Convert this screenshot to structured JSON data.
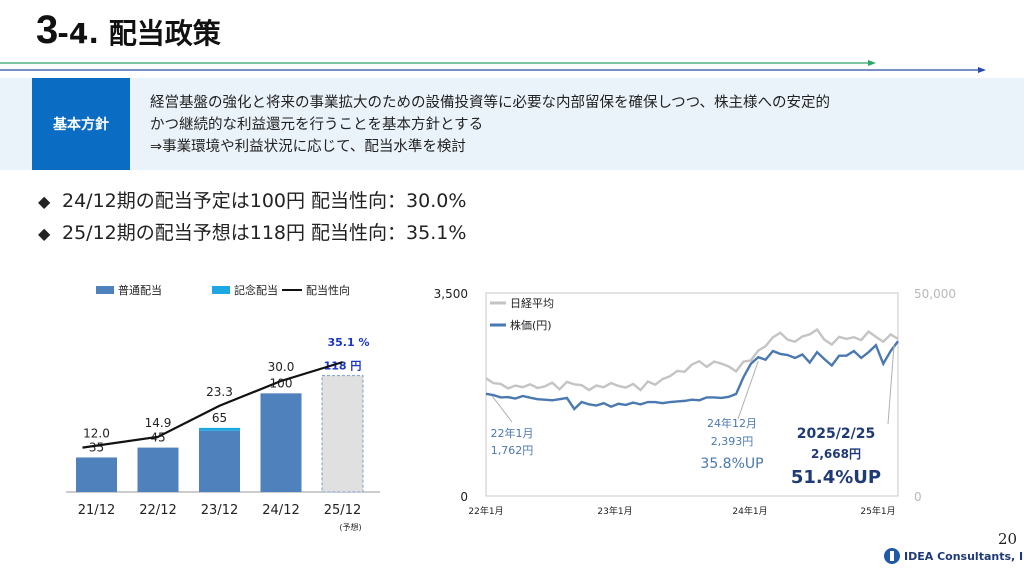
{
  "header": {
    "title_num": "3",
    "title_rest": "-4. 配当政策"
  },
  "policy": {
    "label": "基本方針",
    "lines": [
      "経営基盤の強化と将来の事業拡大のための設備投資等に必要な内部留保を確保しつつ、株主様への安定的",
      "かつ継続的な利益還元を行うことを基本方針とする",
      "⇒事業環境や利益状況に応じて、配当水準を検討"
    ]
  },
  "bullets": [
    "24/12期の配当予定は100円 配当性向：30.0%",
    "25/12期の配当予想は118円 配当性向：35.1%"
  ],
  "colors": {
    "brand_blue": "#0a6cc2",
    "bar_regular": "#4f81bd",
    "bar_commemorative": "#1ea7e1",
    "stock_line": "#4a78b0",
    "nikkei_line": "#c4c4c4",
    "forecast_bar": "#e0e0e0",
    "highlight": "#1a35c8"
  },
  "chart_data": [
    {
      "type": "bar",
      "categories": [
        "21/12",
        "22/12",
        "23/12",
        "24/12",
        "25/12"
      ],
      "category_note": "(予想)",
      "series": [
        {
          "name": "普通配当",
          "values": [
            35,
            45,
            62,
            100,
            118
          ]
        },
        {
          "name": "記念配当",
          "values": [
            0,
            0,
            3,
            0,
            0
          ]
        },
        {
          "name": "配当性向",
          "type": "line",
          "values": [
            12.0,
            14.9,
            23.3,
            30.0,
            35.1
          ]
        }
      ],
      "bar_labels": [
        "35",
        "45",
        "65",
        "100",
        "118 円"
      ],
      "line_labels": [
        "12.0",
        "14.9",
        "23.3",
        "30.0",
        "35.1 %"
      ],
      "ylim": [
        0,
        150
      ],
      "y2lim": [
        0,
        40
      ],
      "legend_position": "top"
    },
    {
      "type": "line",
      "x_ticks": [
        "22年1月",
        "23年1月",
        "24年1月",
        "25年1月"
      ],
      "y_ticks": [
        "3,500",
        "0"
      ],
      "y2_ticks": [
        "50,000",
        "0"
      ],
      "ylim": [
        0,
        3500
      ],
      "y2lim": [
        0,
        50000
      ],
      "legend_position": "top-left",
      "series": [
        {
          "name": "日経平均",
          "axis": "right",
          "values": [
            29000,
            27800,
            27600,
            26500,
            27200,
            26800,
            27500,
            26600,
            27000,
            27900,
            26300,
            28100,
            27500,
            27300,
            26100,
            27200,
            26800,
            27800,
            27100,
            26700,
            27600,
            26100,
            28200,
            27400,
            28800,
            29500,
            30800,
            30600,
            32400,
            33200,
            31800,
            33100,
            32600,
            31900,
            30700,
            33100,
            33400,
            35800,
            36900,
            39100,
            40200,
            38500,
            38000,
            39300,
            39800,
            41000,
            38500,
            37300,
            39200,
            38700,
            39100,
            38400,
            40500,
            39200,
            38000,
            39800,
            38700
          ]
        },
        {
          "name": "株価(円)",
          "axis": "left",
          "values": [
            1762,
            1740,
            1700,
            1705,
            1680,
            1725,
            1695,
            1670,
            1660,
            1650,
            1670,
            1690,
            1500,
            1620,
            1580,
            1560,
            1600,
            1540,
            1590,
            1570,
            1610,
            1580,
            1620,
            1620,
            1600,
            1620,
            1630,
            1640,
            1660,
            1650,
            1700,
            1700,
            1690,
            1710,
            1760,
            2050,
            2280,
            2393,
            2350,
            2500,
            2450,
            2430,
            2380,
            2440,
            2300,
            2480,
            2360,
            2250,
            2420,
            2420,
            2500,
            2380,
            2480,
            2600,
            2280,
            2500,
            2668
          ]
        }
      ],
      "annotations": [
        {
          "date": "22年1月",
          "price": "1,762円"
        },
        {
          "date": "24年12月",
          "price": "2,393円",
          "change": "35.8%UP"
        },
        {
          "date": "2025/2/25",
          "price": "2,668円",
          "change": "51.4%UP"
        }
      ]
    }
  ],
  "footer": {
    "page": "20",
    "logo_text": "IDEA Consultants, Inc."
  }
}
